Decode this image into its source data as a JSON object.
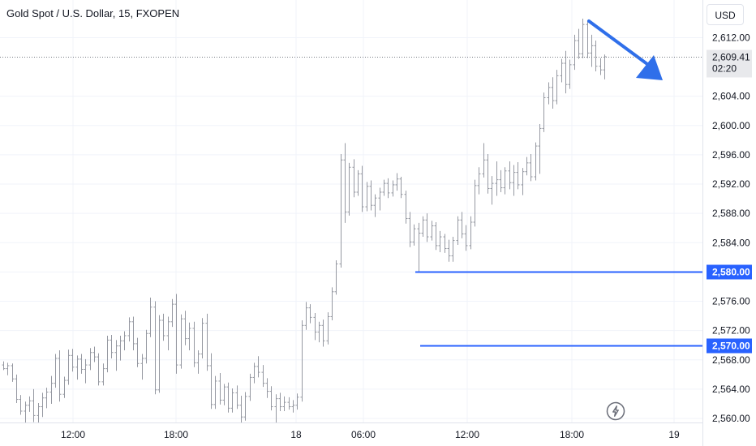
{
  "header": {
    "title": "Gold Spot / U.S. Dollar, 15, FXOPEN",
    "currency": "USD"
  },
  "price_panel": {
    "last_price": "2,609.41",
    "countdown": "02:20"
  },
  "levels": [
    {
      "value": 2580,
      "label": "2,580.00"
    },
    {
      "value": 2570,
      "label": "2,570.00"
    }
  ],
  "colors": {
    "level_line": "#2962ff",
    "candles": "#9598a1",
    "arrow": "#2f6fea",
    "grid": "#f0f3fa",
    "price_tag": "#e8e9ec"
  },
  "icons": {
    "bottom_right": "lightning-icon",
    "arrow": "down-arrow-drawing"
  },
  "chart_data": {
    "type": "candlestick-bar",
    "title": "Gold Spot / U.S. Dollar, 15, FXOPEN",
    "ylim": [
      2559,
      2615
    ],
    "y_ticks": [
      2560,
      2564,
      2568,
      2572,
      2576,
      2580,
      2584,
      2588,
      2592,
      2596,
      2600,
      2604,
      2612
    ],
    "y_tick_labels": [
      "2,560.00",
      "2,564.00",
      "2,568.00",
      "2,572.00",
      "2,576.00",
      "2,580.00",
      "2,584.00",
      "2,588.00",
      "2,592.00",
      "2,596.00",
      "2,600.00",
      "2,604.00",
      "2,612.00"
    ],
    "x_ticks": [
      "12:00",
      "18:00",
      "18",
      "06:00",
      "12:00",
      "18:00",
      "19"
    ],
    "grid": true,
    "bars": [
      [
        2567.3,
        2567.8,
        2566.6,
        2566.8
      ],
      [
        2566.8,
        2567.6,
        2565.9,
        2567.2
      ],
      [
        2567.2,
        2567.5,
        2565.0,
        2565.4
      ],
      [
        2565.4,
        2566.0,
        2562.1,
        2562.6
      ],
      [
        2562.6,
        2563.2,
        2560.5,
        2561.0
      ],
      [
        2561.0,
        2562.3,
        2559.4,
        2561.8
      ],
      [
        2561.8,
        2563.0,
        2560.9,
        2562.4
      ],
      [
        2562.4,
        2564.0,
        2559.5,
        2560.4
      ],
      [
        2560.4,
        2562.1,
        2559.4,
        2561.6
      ],
      [
        2561.6,
        2563.5,
        2560.2,
        2562.8
      ],
      [
        2562.8,
        2564.2,
        2561.4,
        2563.6
      ],
      [
        2563.6,
        2565.8,
        2562.0,
        2564.8
      ],
      [
        2564.8,
        2568.8,
        2564.2,
        2568.2
      ],
      [
        2568.2,
        2569.3,
        2562.3,
        2563.3
      ],
      [
        2563.3,
        2565.7,
        2562.8,
        2565.2
      ],
      [
        2565.2,
        2569.4,
        2564.6,
        2568.6
      ],
      [
        2568.6,
        2569.5,
        2566.4,
        2567.0
      ],
      [
        2567.0,
        2568.6,
        2565.3,
        2568.1
      ],
      [
        2568.1,
        2568.8,
        2566.1,
        2566.7
      ],
      [
        2566.7,
        2568.1,
        2564.8,
        2567.3
      ],
      [
        2567.3,
        2569.6,
        2566.6,
        2569.0
      ],
      [
        2569.0,
        2569.8,
        2567.7,
        2568.4
      ],
      [
        2568.4,
        2568.9,
        2564.5,
        2565.0
      ],
      [
        2565.0,
        2567.5,
        2564.5,
        2566.8
      ],
      [
        2566.8,
        2571.3,
        2566.3,
        2570.7
      ],
      [
        2570.7,
        2571.4,
        2568.2,
        2569.0
      ],
      [
        2569.0,
        2570.7,
        2566.5,
        2569.9
      ],
      [
        2569.9,
        2571.3,
        2567.9,
        2570.6
      ],
      [
        2570.6,
        2571.9,
        2569.3,
        2571.3
      ],
      [
        2571.3,
        2573.8,
        2570.5,
        2573.2
      ],
      [
        2573.2,
        2573.9,
        2569.3,
        2570.2
      ],
      [
        2570.2,
        2571.0,
        2567.0,
        2567.5
      ],
      [
        2567.5,
        2568.8,
        2565.3,
        2568.2
      ],
      [
        2568.2,
        2572.1,
        2567.5,
        2571.6
      ],
      [
        2571.6,
        2576.5,
        2571.1,
        2575.2
      ],
      [
        2575.2,
        2576.0,
        2563.3,
        2563.9
      ],
      [
        2563.9,
        2574.1,
        2563.5,
        2573.4
      ],
      [
        2573.4,
        2574.3,
        2570.6,
        2571.3
      ],
      [
        2571.3,
        2573.9,
        2569.3,
        2573.2
      ],
      [
        2573.2,
        2576.3,
        2572.5,
        2575.6
      ],
      [
        2575.6,
        2577.0,
        2566.1,
        2567.3
      ],
      [
        2567.3,
        2574.2,
        2566.8,
        2573.6
      ],
      [
        2573.6,
        2574.7,
        2570.0,
        2570.9
      ],
      [
        2570.9,
        2573.1,
        2569.3,
        2572.3
      ],
      [
        2572.3,
        2573.2,
        2567.0,
        2567.6
      ],
      [
        2567.6,
        2569.3,
        2566.1,
        2568.8
      ],
      [
        2568.8,
        2573.7,
        2568.2,
        2573.0
      ],
      [
        2573.0,
        2574.3,
        2566.5,
        2567.2
      ],
      [
        2567.2,
        2568.9,
        2561.3,
        2561.9
      ],
      [
        2561.9,
        2565.8,
        2561.3,
        2565.1
      ],
      [
        2565.1,
        2566.2,
        2561.9,
        2562.5
      ],
      [
        2562.5,
        2564.7,
        2561.8,
        2564.3
      ],
      [
        2564.3,
        2564.9,
        2560.8,
        2561.4
      ],
      [
        2561.4,
        2564.1,
        2560.8,
        2563.5
      ],
      [
        2563.5,
        2564.5,
        2561.3,
        2561.8
      ],
      [
        2561.8,
        2563.1,
        2559.4,
        2560.2
      ],
      [
        2560.2,
        2563.6,
        2559.7,
        2563.0
      ],
      [
        2563.0,
        2566.1,
        2562.4,
        2565.6
      ],
      [
        2565.6,
        2567.6,
        2564.8,
        2567.1
      ],
      [
        2567.1,
        2568.5,
        2565.6,
        2566.3
      ],
      [
        2566.3,
        2567.3,
        2564.3,
        2564.8
      ],
      [
        2564.8,
        2565.5,
        2562.8,
        2563.7
      ],
      [
        2563.7,
        2564.4,
        2561.1,
        2561.6
      ],
      [
        2561.6,
        2563.3,
        2559.4,
        2562.7
      ],
      [
        2562.7,
        2563.5,
        2561.0,
        2561.6
      ],
      [
        2561.6,
        2563.0,
        2561.0,
        2562.2
      ],
      [
        2562.2,
        2562.9,
        2561.2,
        2561.6
      ],
      [
        2561.6,
        2562.5,
        2560.8,
        2561.8
      ],
      [
        2561.8,
        2563.4,
        2561.2,
        2562.9
      ],
      [
        2562.9,
        2573.4,
        2562.3,
        2572.7
      ],
      [
        2572.7,
        2575.9,
        2572.1,
        2575.1
      ],
      [
        2575.1,
        2575.6,
        2573.0,
        2573.8
      ],
      [
        2573.8,
        2574.4,
        2570.7,
        2571.8
      ],
      [
        2571.8,
        2573.2,
        2570.4,
        2572.7
      ],
      [
        2572.7,
        2573.5,
        2569.8,
        2570.6
      ],
      [
        2570.6,
        2574.5,
        2570.1,
        2573.9
      ],
      [
        2573.9,
        2577.9,
        2573.4,
        2577.3
      ],
      [
        2577.3,
        2581.6,
        2576.9,
        2581.1
      ],
      [
        2581.1,
        2596.1,
        2580.6,
        2595.3
      ],
      [
        2595.3,
        2597.6,
        2586.7,
        2588.2
      ],
      [
        2588.2,
        2594.9,
        2587.7,
        2594.3
      ],
      [
        2594.3,
        2595.4,
        2590.2,
        2590.9
      ],
      [
        2590.9,
        2593.9,
        2590.4,
        2593.4
      ],
      [
        2593.4,
        2594.5,
        2588.2,
        2588.9
      ],
      [
        2588.9,
        2592.3,
        2588.3,
        2591.7
      ],
      [
        2591.7,
        2592.5,
        2588.4,
        2589.1
      ],
      [
        2589.1,
        2590.6,
        2587.5,
        2590.1
      ],
      [
        2590.1,
        2591.5,
        2588.4,
        2590.9
      ],
      [
        2590.9,
        2592.6,
        2590.4,
        2592.1
      ],
      [
        2592.1,
        2592.8,
        2590.1,
        2590.8
      ],
      [
        2590.8,
        2592.5,
        2590.3,
        2591.9
      ],
      [
        2591.9,
        2593.5,
        2591.1,
        2592.7
      ],
      [
        2592.7,
        2593.0,
        2590.1,
        2590.6
      ],
      [
        2590.6,
        2591.1,
        2586.6,
        2587.3
      ],
      [
        2587.3,
        2588.2,
        2583.4,
        2584.1
      ],
      [
        2584.1,
        2586.5,
        2583.6,
        2585.9
      ],
      [
        2585.9,
        2586.7,
        2580.1,
        2585.3
      ],
      [
        2585.3,
        2587.6,
        2584.8,
        2587.1
      ],
      [
        2587.1,
        2588.0,
        2584.1,
        2584.8
      ],
      [
        2584.8,
        2587.0,
        2584.3,
        2586.3
      ],
      [
        2586.3,
        2586.8,
        2583.0,
        2583.6
      ],
      [
        2583.6,
        2585.6,
        2582.7,
        2584.8
      ],
      [
        2584.8,
        2585.2,
        2582.6,
        2583.2
      ],
      [
        2583.2,
        2584.4,
        2581.4,
        2582.2
      ],
      [
        2582.2,
        2584.8,
        2581.4,
        2584.3
      ],
      [
        2584.3,
        2587.6,
        2583.7,
        2587.1
      ],
      [
        2587.1,
        2588.2,
        2584.6,
        2585.2
      ],
      [
        2585.2,
        2586.4,
        2582.9,
        2583.6
      ],
      [
        2583.6,
        2587.6,
        2583.1,
        2586.8
      ],
      [
        2586.8,
        2592.6,
        2586.2,
        2591.8
      ],
      [
        2591.8,
        2594.3,
        2590.6,
        2593.4
      ],
      [
        2593.4,
        2597.6,
        2592.9,
        2595.3
      ],
      [
        2595.3,
        2596.1,
        2590.7,
        2591.4
      ],
      [
        2591.4,
        2593.1,
        2589.2,
        2592.1
      ],
      [
        2592.1,
        2595.1,
        2590.4,
        2592.6
      ],
      [
        2592.6,
        2593.9,
        2590.9,
        2591.5
      ],
      [
        2591.5,
        2594.3,
        2590.6,
        2593.8
      ],
      [
        2593.8,
        2595.1,
        2591.3,
        2592.2
      ],
      [
        2592.2,
        2594.6,
        2590.4,
        2593.6
      ],
      [
        2593.6,
        2595.0,
        2591.3,
        2591.9
      ],
      [
        2591.9,
        2594.2,
        2590.5,
        2593.7
      ],
      [
        2593.7,
        2595.7,
        2593.2,
        2594.9
      ],
      [
        2594.9,
        2596.1,
        2592.4,
        2593.0
      ],
      [
        2593.0,
        2597.7,
        2592.5,
        2597.2
      ],
      [
        2597.2,
        2600.2,
        2593.4,
        2599.6
      ],
      [
        2599.6,
        2604.5,
        2599.1,
        2603.8
      ],
      [
        2603.8,
        2605.9,
        2602.9,
        2605.2
      ],
      [
        2605.2,
        2606.6,
        2602.3,
        2603.4
      ],
      [
        2603.4,
        2607.6,
        2602.9,
        2606.8
      ],
      [
        2606.8,
        2609.1,
        2605.9,
        2608.5
      ],
      [
        2608.5,
        2610.2,
        2604.4,
        2605.6
      ],
      [
        2605.6,
        2609.0,
        2605.0,
        2608.3
      ],
      [
        2608.3,
        2612.4,
        2607.6,
        2611.6
      ],
      [
        2611.6,
        2613.2,
        2609.1,
        2609.8
      ],
      [
        2609.8,
        2614.6,
        2609.2,
        2613.8
      ],
      [
        2613.8,
        2614.4,
        2609.2,
        2609.9
      ],
      [
        2609.9,
        2612.4,
        2608.0,
        2610.9
      ],
      [
        2610.9,
        2611.6,
        2607.4,
        2608.1
      ],
      [
        2608.1,
        2609.2,
        2606.9,
        2607.6
      ],
      [
        2607.6,
        2609.7,
        2606.3,
        2609.4
      ]
    ],
    "annotations": [
      {
        "type": "horizontal-line",
        "value": 2580,
        "label": "2,580.00"
      },
      {
        "type": "horizontal-line",
        "value": 2570,
        "label": "2,570.00"
      },
      {
        "type": "arrow",
        "direction": "down-right"
      },
      {
        "type": "last-price",
        "value": 2609.41,
        "label": "2,609.41",
        "countdown": "02:20"
      }
    ]
  }
}
